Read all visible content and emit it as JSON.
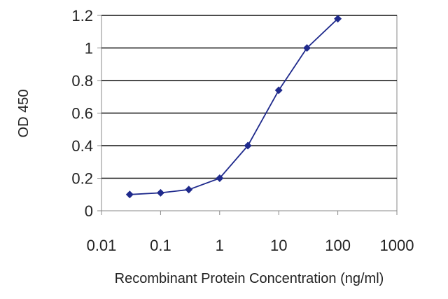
{
  "chart_data": {
    "type": "line",
    "xlabel": "Recombinant Protein Concentration (ng/ml)",
    "ylabel": "OD 450",
    "x_scale": "log",
    "xlim": [
      0.01,
      1000
    ],
    "ylim": [
      0,
      1.2
    ],
    "x_ticks": [
      0.01,
      0.1,
      1,
      10,
      100,
      1000
    ],
    "x_tick_labels": [
      "0.01",
      "0.1",
      "1",
      "10",
      "100",
      "1000"
    ],
    "y_ticks": [
      0,
      0.2,
      0.4,
      0.6,
      0.8,
      1,
      1.2
    ],
    "y_tick_labels": [
      "0",
      "0.2",
      "0.4",
      "0.6",
      "0.8",
      "1",
      "1.2"
    ],
    "grid": "horizontal",
    "legend": "none",
    "series": [
      {
        "x": [
          0.03,
          0.1,
          0.3,
          1,
          3,
          10,
          30,
          100
        ],
        "y": [
          0.1,
          0.11,
          0.13,
          0.2,
          0.4,
          0.74,
          1.0,
          1.18
        ],
        "color": "#1f2a8c",
        "marker": "diamond"
      }
    ]
  }
}
